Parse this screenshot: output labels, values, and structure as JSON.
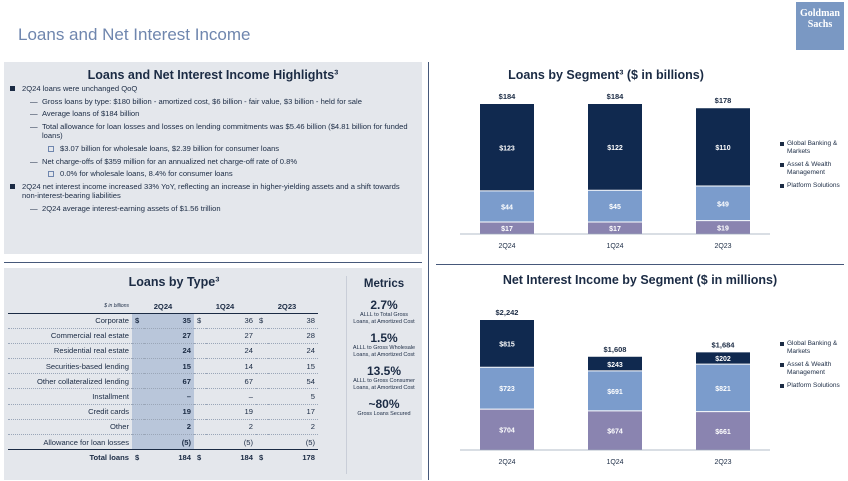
{
  "page_title": "Loans and Net Interest Income",
  "logo": {
    "line1": "Goldman",
    "line2": "Sachs"
  },
  "highlights": {
    "title": "Loans and Net Interest Income Highlights³",
    "items": [
      {
        "level": 1,
        "text": "2Q24 loans were unchanged QoQ"
      },
      {
        "level": 2,
        "text": "Gross loans by type: $180 billion - amortized cost, $6 billion - fair value, $3 billion - held for sale"
      },
      {
        "level": 2,
        "text": "Average loans of $184 billion"
      },
      {
        "level": 2,
        "text": "Total allowance for loan losses and losses on lending commitments was $5.46 billion ($4.81 billion for funded loans)"
      },
      {
        "level": 3,
        "text": "$3.07 billion for wholesale loans, $2.39 billion for consumer loans"
      },
      {
        "level": 2,
        "text": "Net charge-offs of $359 million for an annualized net charge-off rate of 0.8%"
      },
      {
        "level": 3,
        "text": "0.0% for wholesale loans, 8.4% for consumer loans"
      },
      {
        "level": 1,
        "text": "2Q24 net interest income increased 33% YoY, reflecting an increase in higher-yielding assets and a shift towards non-interest-bearing liabilities"
      },
      {
        "level": 2,
        "text": "2Q24 average interest-earning assets of $1.56 trillion"
      }
    ]
  },
  "loans_by_type": {
    "title": "Loans by Type³",
    "unit_label": "$ in billions",
    "columns": [
      "2Q24",
      "1Q24",
      "2Q23"
    ],
    "rows": [
      {
        "label": "Corporate",
        "d": "$",
        "values": [
          "35",
          "36",
          "38"
        ],
        "dollar": true
      },
      {
        "label": "Commercial real estate",
        "values": [
          "27",
          "27",
          "28"
        ]
      },
      {
        "label": "Residential real estate",
        "values": [
          "24",
          "24",
          "24"
        ]
      },
      {
        "label": "Securities-based lending",
        "values": [
          "15",
          "14",
          "15"
        ]
      },
      {
        "label": "Other collateralized lending",
        "values": [
          "67",
          "67",
          "54"
        ]
      },
      {
        "label": "Installment",
        "values": [
          "–",
          "–",
          "5"
        ]
      },
      {
        "label": "Credit cards",
        "values": [
          "19",
          "19",
          "17"
        ]
      },
      {
        "label": "Other",
        "values": [
          "2",
          "2",
          "2"
        ]
      },
      {
        "label": "Allowance for loan losses",
        "values": [
          "(5)",
          "(5)",
          "(5)"
        ]
      }
    ],
    "total": {
      "label": "Total loans",
      "d": "$",
      "values": [
        "184",
        "184",
        "178"
      ]
    }
  },
  "metrics": {
    "title": "Metrics",
    "items": [
      {
        "value": "2.7%",
        "caption": "ALLL to Total Gross Loans, at Amortized Cost"
      },
      {
        "value": "1.5%",
        "caption": "ALLL to Gross Wholesale Loans, at Amortized Cost"
      },
      {
        "value": "13.5%",
        "caption": "ALLL to Gross Consumer Loans, at Amortized Cost"
      },
      {
        "value": "~80%",
        "caption": "Gross Loans Secured"
      }
    ]
  },
  "colors": {
    "dark": "#10294f",
    "mid": "#7b9ccc",
    "light": "#8a84b0",
    "panel": "#e4e7ec",
    "accent": "#6f86ae"
  },
  "chart_data": [
    {
      "type": "bar",
      "stacked": true,
      "title": "Loans by Segment³ ($ in billions)",
      "categories": [
        "2Q24",
        "1Q24",
        "2Q23"
      ],
      "totals": [
        "$184",
        "$184",
        "$178"
      ],
      "series": [
        {
          "name": "Platform Solutions",
          "values": [
            17,
            17,
            19
          ],
          "color": "#8a84b0"
        },
        {
          "name": "Asset & Wealth Management",
          "values": [
            44,
            45,
            49
          ],
          "color": "#7b9ccc"
        },
        {
          "name": "Global Banking & Markets",
          "values": [
            123,
            122,
            110
          ],
          "color": "#10294f"
        }
      ],
      "ylim": [
        0,
        184
      ],
      "legend": "right"
    },
    {
      "type": "bar",
      "stacked": true,
      "title": "Net Interest Income by Segment ($ in millions)",
      "categories": [
        "2Q24",
        "1Q24",
        "2Q23"
      ],
      "totals": [
        "$2,242",
        "$1,608",
        "$1,684"
      ],
      "series": [
        {
          "name": "Platform Solutions",
          "values": [
            704,
            674,
            661
          ],
          "color": "#8a84b0"
        },
        {
          "name": "Asset & Wealth Management",
          "values": [
            723,
            691,
            821
          ],
          "color": "#7b9ccc"
        },
        {
          "name": "Global Banking & Markets",
          "values": [
            815,
            243,
            202
          ],
          "color": "#10294f"
        }
      ],
      "ylim": [
        0,
        2242
      ],
      "legend": "right"
    }
  ]
}
